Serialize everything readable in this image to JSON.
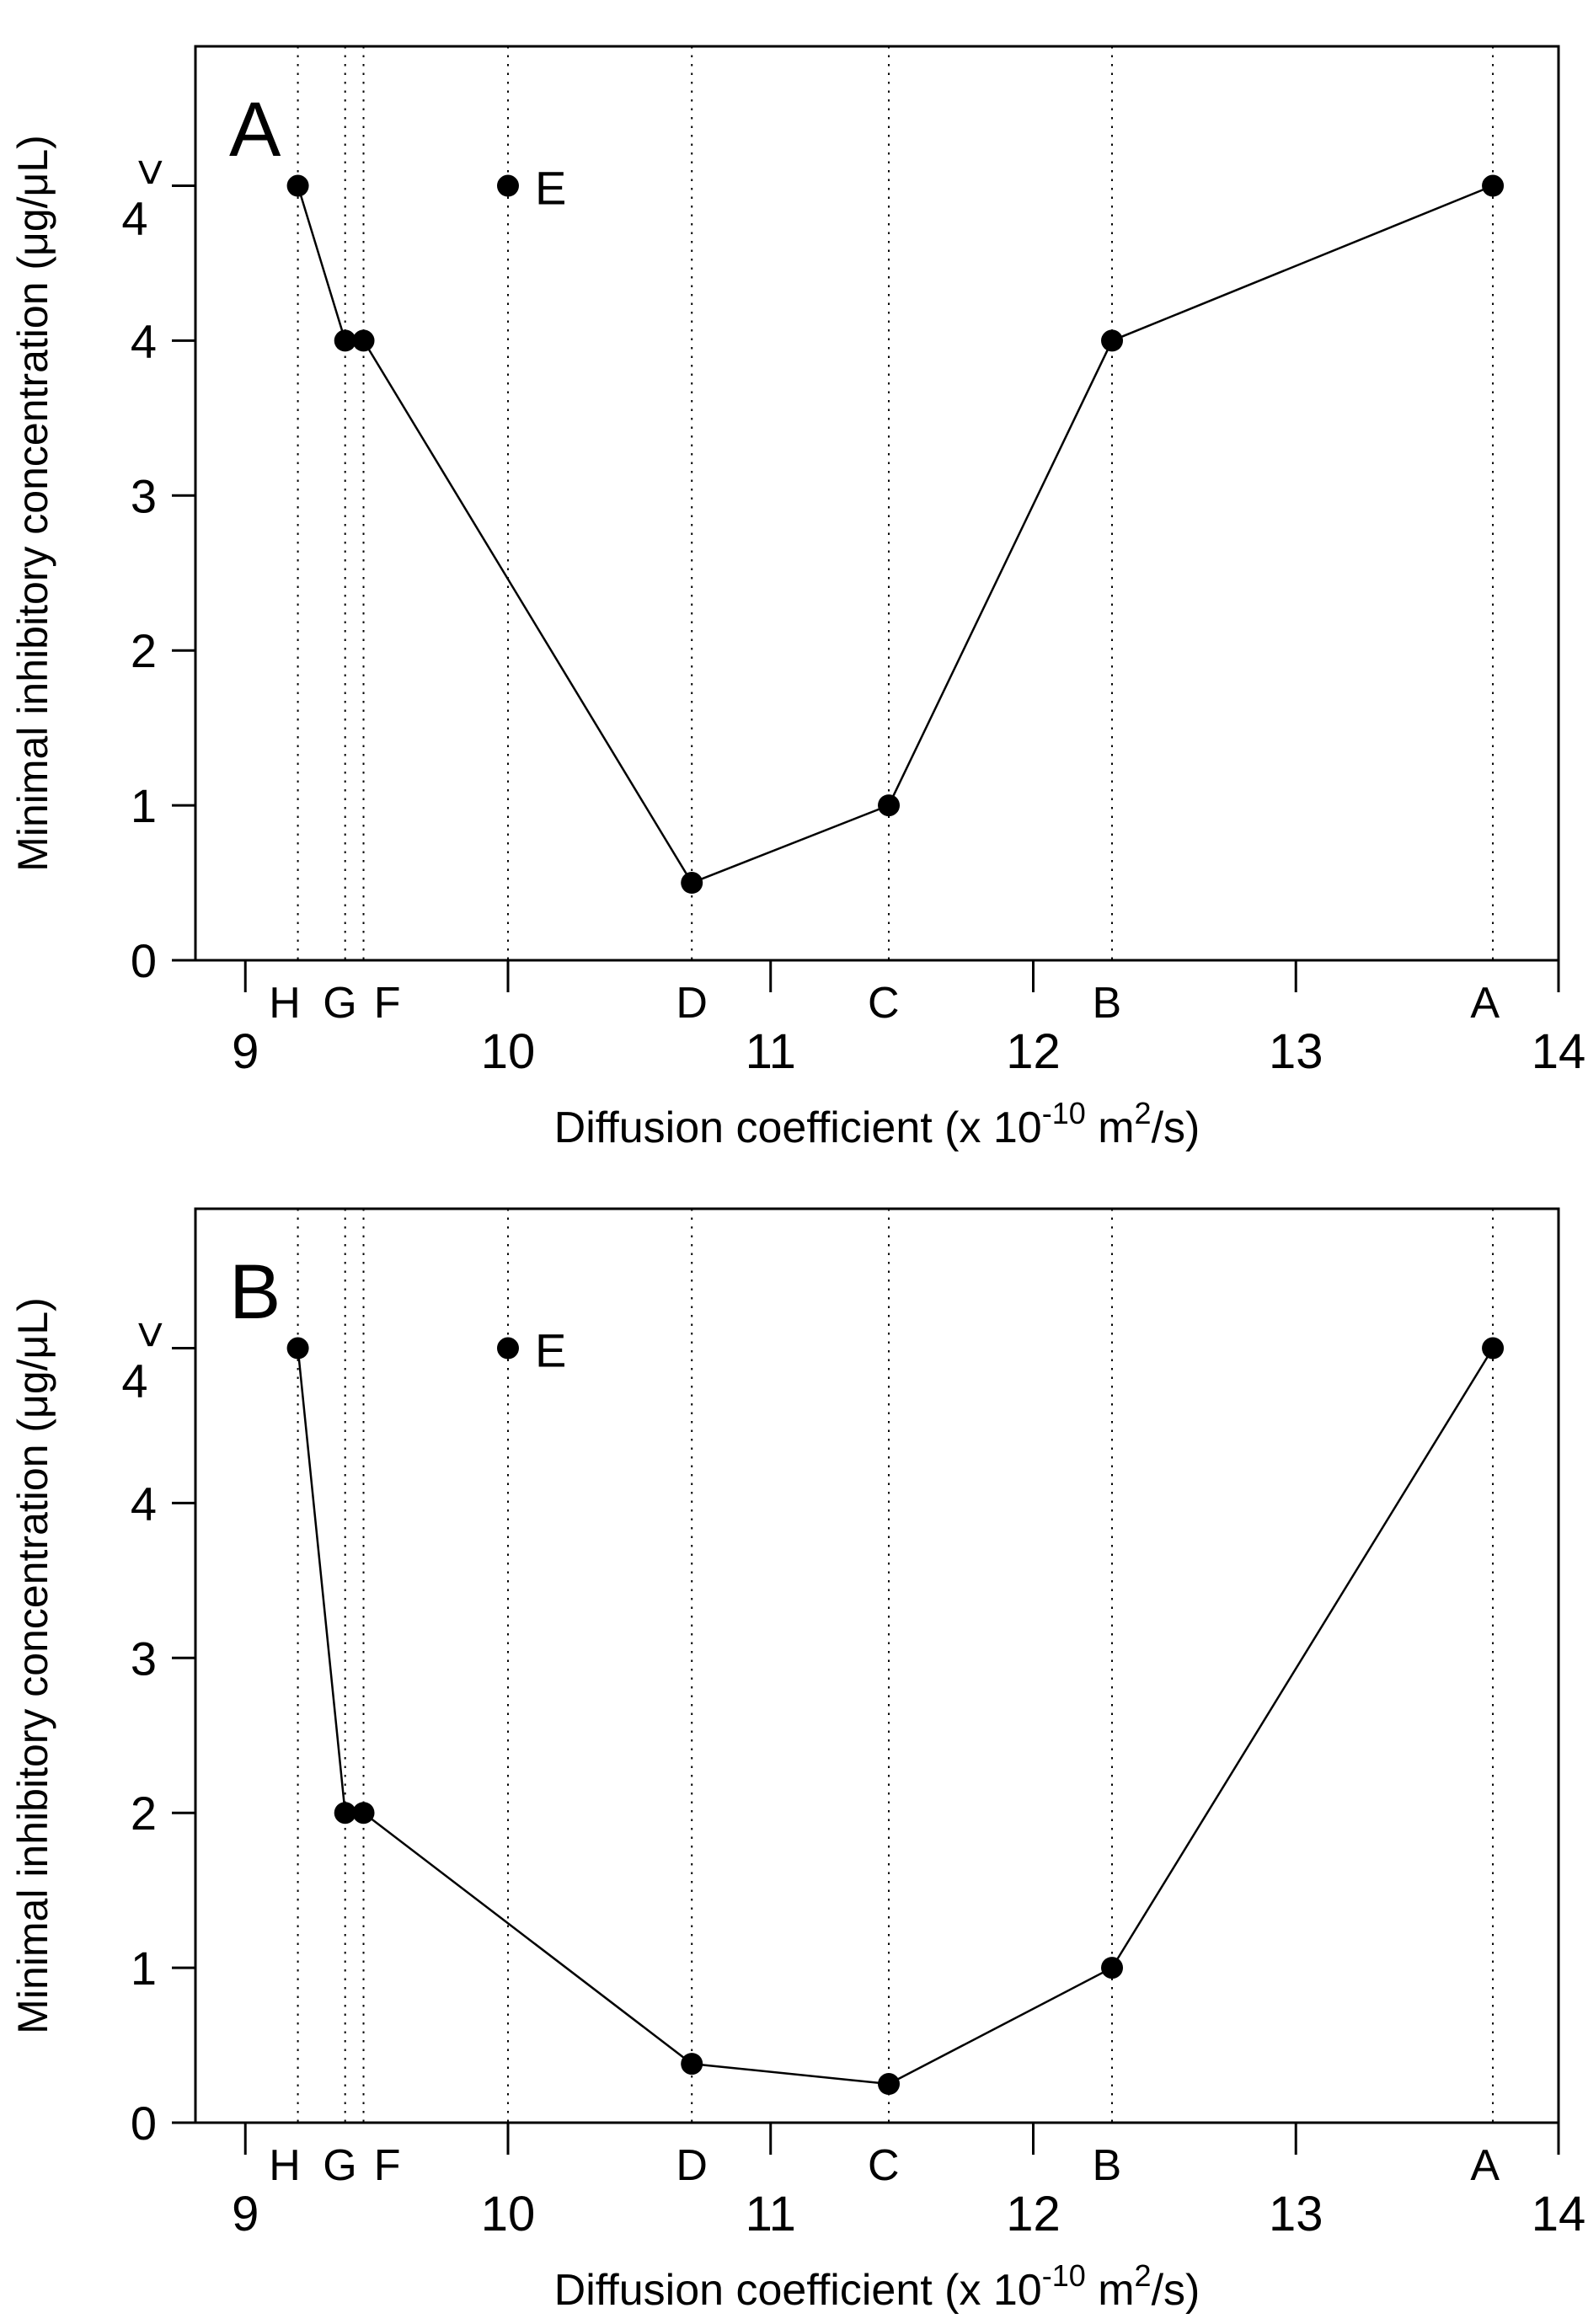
{
  "figure": {
    "background": "#ffffff",
    "ink": "#000000"
  },
  "axis_labels": {
    "y_title": "Minimal inhibitory concentration (μg/μL)",
    "x_title_plain": "Diffusion coefficient (x 10-10 m2/s)",
    "x_title_parts": {
      "prefix": "Diffusion coefficient (x 10",
      "sup1": "-10",
      "mid": " m",
      "sup2": "2",
      "suffix": "/s)"
    }
  },
  "chart_data": [
    {
      "type": "line",
      "panel_label": "A",
      "xlabel": "Diffusion coefficient (x 10-10 m2/s)",
      "ylabel": "Minimal inhibitory concentration (μg/μL)",
      "xlim": [
        8.81,
        14.0
      ],
      "ylim": [
        0,
        5.9
      ],
      "x_ticks": [
        9,
        10,
        11,
        12,
        13,
        14
      ],
      "x_tick_labels": [
        "9",
        "10",
        "11",
        "12",
        "13",
        "14"
      ],
      "y_ticks": [
        0,
        1,
        2,
        3,
        4
      ],
      "y_tick_labels": [
        "0",
        "1",
        "2",
        "3",
        "4"
      ],
      "over_limit": {
        "label": ">4",
        "plot_level": 5.0
      },
      "guides": "dotted vertical line at each data point from top frame to x-axis",
      "series": [
        {
          "name": "samples-line",
          "connected": true,
          "points": [
            {
              "label": "H",
              "x": 9.2,
              "y": 5.0,
              "mic": ">4",
              "tick_x": 9.15
            },
            {
              "label": "G",
              "x": 9.38,
              "y": 4.0,
              "mic": "4",
              "tick_x": 9.36
            },
            {
              "label": "F",
              "x": 9.45,
              "y": 4.0,
              "mic": "4",
              "tick_x": 9.54
            },
            {
              "label": "D",
              "x": 10.7,
              "y": 0.5,
              "mic": "0.5",
              "tick_x": 10.7
            },
            {
              "label": "C",
              "x": 11.45,
              "y": 1.0,
              "mic": "1",
              "tick_x": 11.43
            },
            {
              "label": "B",
              "x": 12.3,
              "y": 4.0,
              "mic": "4",
              "tick_x": 12.28
            },
            {
              "label": "A",
              "x": 13.75,
              "y": 5.0,
              "mic": ">4",
              "tick_x": 13.72
            }
          ]
        },
        {
          "name": "sample-E",
          "connected": false,
          "points": [
            {
              "label": "E",
              "x": 10.0,
              "y": 5.0,
              "mic": ">4",
              "label_beside": true
            }
          ]
        }
      ]
    },
    {
      "type": "line",
      "panel_label": "B",
      "xlabel": "Diffusion coefficient (x 10-10 m2/s)",
      "ylabel": "Minimal inhibitory concentration (μg/μL)",
      "xlim": [
        8.81,
        14.0
      ],
      "ylim": [
        0,
        5.9
      ],
      "x_ticks": [
        9,
        10,
        11,
        12,
        13,
        14
      ],
      "x_tick_labels": [
        "9",
        "10",
        "11",
        "12",
        "13",
        "14"
      ],
      "y_ticks": [
        0,
        1,
        2,
        3,
        4
      ],
      "y_tick_labels": [
        "0",
        "1",
        "2",
        "3",
        "4"
      ],
      "over_limit": {
        "label": ">4",
        "plot_level": 5.0
      },
      "guides": "dotted vertical line at each data point from top frame to x-axis",
      "series": [
        {
          "name": "samples-line",
          "connected": true,
          "points": [
            {
              "label": "H",
              "x": 9.2,
              "y": 5.0,
              "mic": ">4",
              "tick_x": 9.15
            },
            {
              "label": "G",
              "x": 9.38,
              "y": 2.0,
              "mic": "2",
              "tick_x": 9.36
            },
            {
              "label": "F",
              "x": 9.45,
              "y": 2.0,
              "mic": "2",
              "tick_x": 9.54
            },
            {
              "label": "D",
              "x": 10.7,
              "y": 0.38,
              "mic": "0.38",
              "tick_x": 10.7
            },
            {
              "label": "C",
              "x": 11.45,
              "y": 0.25,
              "mic": "0.25",
              "tick_x": 11.43
            },
            {
              "label": "B",
              "x": 12.3,
              "y": 1.0,
              "mic": "1",
              "tick_x": 12.28
            },
            {
              "label": "A",
              "x": 13.75,
              "y": 5.0,
              "mic": ">4",
              "tick_x": 13.72
            }
          ]
        },
        {
          "name": "sample-E",
          "connected": false,
          "points": [
            {
              "label": "E",
              "x": 10.0,
              "y": 5.0,
              "mic": ">4",
              "label_beside": true
            }
          ]
        }
      ]
    }
  ]
}
